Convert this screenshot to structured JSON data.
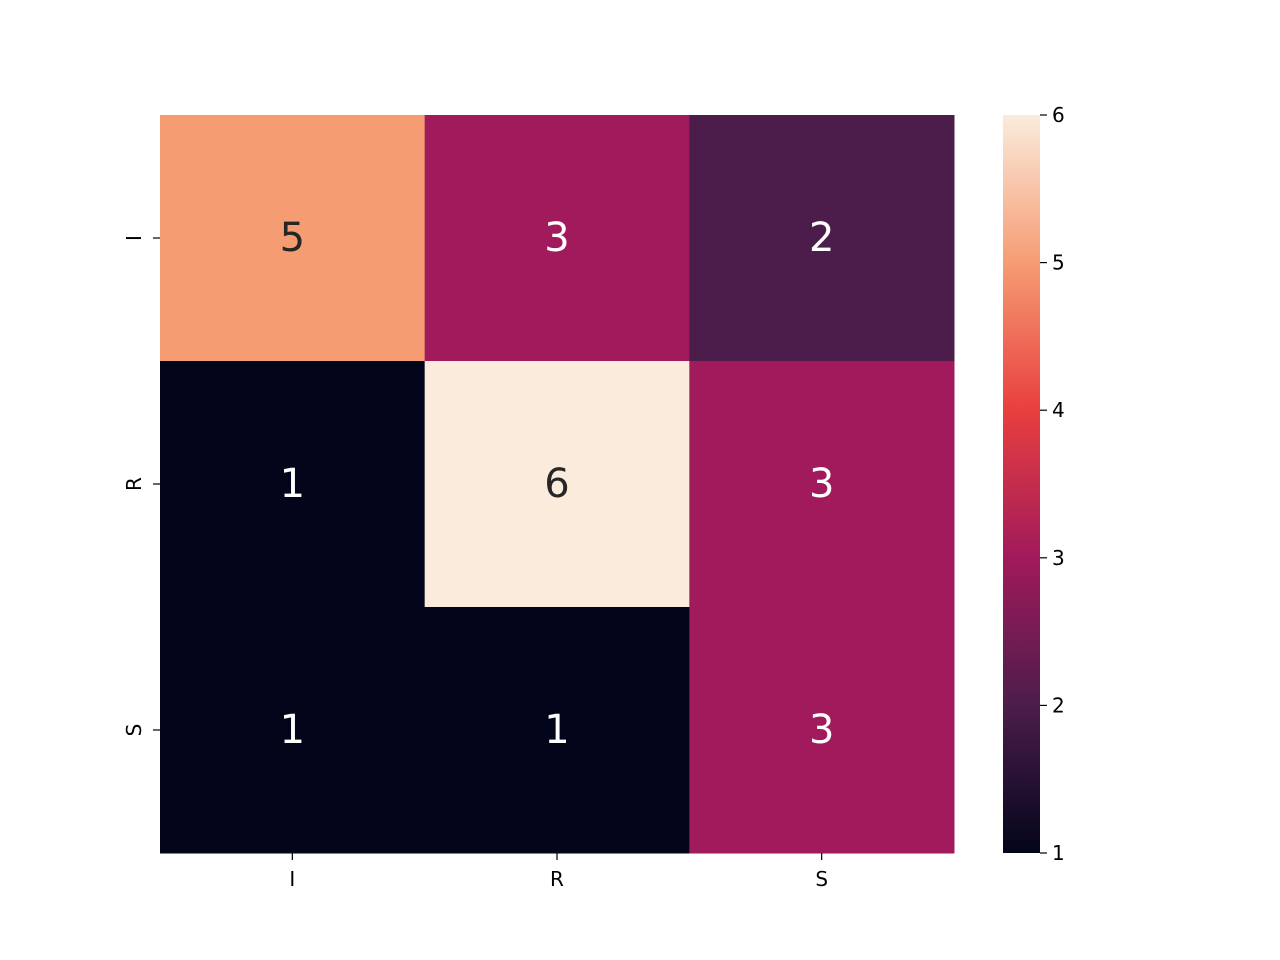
{
  "chart_data": {
    "type": "heatmap",
    "title": "",
    "xlabel": "",
    "ylabel": "",
    "x_categories": [
      "I",
      "R",
      "S"
    ],
    "y_categories": [
      "I",
      "R",
      "S"
    ],
    "values": [
      [
        5,
        3,
        2
      ],
      [
        1,
        6,
        3
      ],
      [
        1,
        1,
        3
      ]
    ],
    "colorbar": {
      "min": 1,
      "max": 6,
      "ticks": [
        1,
        2,
        3,
        4,
        5,
        6
      ]
    },
    "colormap": "rocket",
    "annotations": true,
    "grid": false
  }
}
